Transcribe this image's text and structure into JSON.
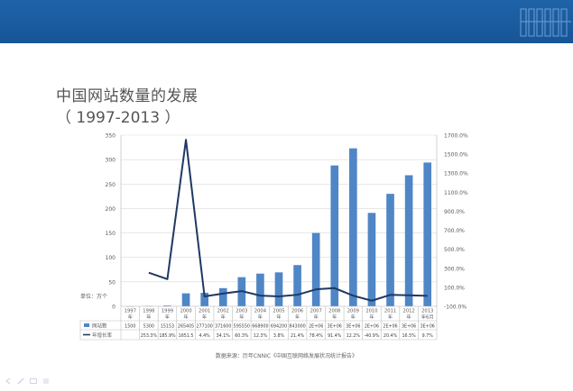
{
  "slide": {
    "title": "中国网站数量的发展",
    "subtitle": "（ 1997-2013 ）",
    "source": "数据来源：历年CNNIC《中国互联网络发展状况统计报告》"
  },
  "colors": {
    "banner": "#1a5ba0",
    "bar": "#4f86c6",
    "line": "#1f3864",
    "grid": "#d9d9d9",
    "axis_text": "#595959"
  },
  "chart_data": {
    "type": "bar",
    "categories": [
      "1997年",
      "1998年",
      "1999年",
      "2000年",
      "2001年",
      "2002年",
      "2003年",
      "2004年",
      "2005年",
      "2006年",
      "2007年",
      "2008年",
      "2009年",
      "2010年",
      "2011年",
      "2012年",
      "2013年6月"
    ],
    "ylabel": "单位：万个",
    "ylim": [
      0,
      350
    ],
    "yticks": [
      0,
      50,
      100,
      150,
      200,
      250,
      300,
      350
    ],
    "y2lim": [
      -100,
      1700
    ],
    "y2ticks": [
      "-100.0%",
      "100.0%",
      "300.0%",
      "500.0%",
      "700.0%",
      "900.0%",
      "1100.0%",
      "1300.0%",
      "1500.0%",
      "1700.0%"
    ],
    "y2tick_values": [
      -100,
      100,
      300,
      500,
      700,
      900,
      1100,
      1300,
      1500,
      1700
    ],
    "grid": true,
    "legend": "table-bottom",
    "series": [
      {
        "name": "网站数",
        "type": "bar",
        "axis": "left",
        "values": [
          0.15,
          0.53,
          1.52,
          26.5,
          27.7,
          37.2,
          59.6,
          66.9,
          69.4,
          84.3,
          150,
          288,
          323,
          191,
          230,
          268,
          294
        ],
        "table_row": [
          "1500",
          "5300",
          "15153",
          "265405",
          "277100",
          "371600",
          "595550",
          "668900",
          "694200",
          "843000",
          "2E+06",
          "3E+06",
          "3E+06",
          "2E+06",
          "2E+06",
          "3E+06",
          "3E+06"
        ]
      },
      {
        "name": "年增长率",
        "type": "line",
        "axis": "right",
        "values": [
          null,
          253.3,
          185.9,
          1651.5,
          4.4,
          34.1,
          60.3,
          12.3,
          3.8,
          21.4,
          78.4,
          91.4,
          12.2,
          -40.9,
          20.4,
          16.5,
          9.7
        ],
        "table_row": [
          "",
          "253.3%",
          "185.9%",
          "1651.5",
          "4.4%",
          "34.1%",
          "60.3%",
          "12.3%",
          "3.8%",
          "21.4%",
          "78.4%",
          "91.4%",
          "12.2%",
          "-40.9%",
          "20.4%",
          "16.5%",
          "9.7%"
        ]
      }
    ]
  }
}
